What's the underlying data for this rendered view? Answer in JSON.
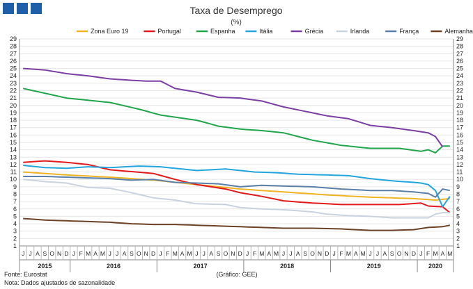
{
  "header": {
    "logo_icon": "eurostat-style-blocks-icon",
    "accent_color": "#1f5fa8"
  },
  "footer": {
    "source": "Fonte: Eurostat",
    "note": "Nota: Dados ajustados de sazonalidade",
    "credit": "(Gráfico: GEE)"
  },
  "chart_data": {
    "type": "line",
    "title": "Taxa de Desemprego",
    "subtitle": "(%)",
    "xlabel": "",
    "ylabel": "",
    "ylim": [
      1,
      29
    ],
    "yticks": [
      1,
      2,
      3,
      4,
      5,
      6,
      7,
      8,
      9,
      10,
      11,
      12,
      13,
      14,
      15,
      16,
      17,
      18,
      19,
      20,
      21,
      22,
      23,
      24,
      25,
      26,
      27,
      28,
      29
    ],
    "grid": true,
    "legend_position": "top",
    "month_labels": [
      "J",
      "J",
      "A",
      "S",
      "O",
      "N",
      "D",
      "J",
      "F",
      "M",
      "A",
      "M",
      "J",
      "J",
      "A",
      "S",
      "O",
      "N",
      "D",
      "J",
      "F",
      "M",
      "A",
      "M",
      "J",
      "J",
      "A",
      "S",
      "O",
      "N",
      "D",
      "J",
      "F",
      "M",
      "A",
      "M",
      "J",
      "J",
      "A",
      "S",
      "O",
      "N",
      "D",
      "J",
      "F",
      "M",
      "A",
      "M",
      "J",
      "J",
      "A",
      "S",
      "O",
      "N",
      "D",
      "J",
      "F",
      "M",
      "A",
      "M"
    ],
    "year_labels": [
      {
        "label": "2015",
        "start": 0,
        "end": 6
      },
      {
        "label": "2016",
        "start": 7,
        "end": 18
      },
      {
        "label": "2017",
        "start": 19,
        "end": 30
      },
      {
        "label": "2018",
        "start": 31,
        "end": 42
      },
      {
        "label": "2019",
        "start": 43,
        "end": 54
      },
      {
        "label": "2020",
        "start": 55,
        "end": 59
      }
    ],
    "series": [
      {
        "name": "Zona Euro 19",
        "color": "#f0b323",
        "anchors": [
          [
            0,
            11.0
          ],
          [
            6,
            10.6
          ],
          [
            12,
            10.3
          ],
          [
            18,
            9.9
          ],
          [
            24,
            9.3
          ],
          [
            30,
            8.7
          ],
          [
            36,
            8.3
          ],
          [
            42,
            7.9
          ],
          [
            48,
            7.6
          ],
          [
            54,
            7.4
          ],
          [
            57,
            7.2
          ],
          [
            58,
            7.3
          ],
          [
            59,
            7.4
          ]
        ]
      },
      {
        "name": "Portugal",
        "color": "#e31a1c",
        "anchors": [
          [
            0,
            12.3
          ],
          [
            3,
            12.5
          ],
          [
            6,
            12.3
          ],
          [
            9,
            12.0
          ],
          [
            12,
            11.3
          ],
          [
            18,
            10.8
          ],
          [
            21,
            10.0
          ],
          [
            24,
            9.3
          ],
          [
            28,
            8.7
          ],
          [
            30,
            8.2
          ],
          [
            33,
            7.7
          ],
          [
            36,
            7.1
          ],
          [
            40,
            6.8
          ],
          [
            44,
            6.6
          ],
          [
            48,
            6.6
          ],
          [
            52,
            6.6
          ],
          [
            55,
            6.8
          ],
          [
            56,
            6.4
          ],
          [
            58,
            6.3
          ],
          [
            59,
            5.5
          ]
        ]
      },
      {
        "name": "Espanha",
        "color": "#1fa64a",
        "anchors": [
          [
            0,
            22.3
          ],
          [
            6,
            21.0
          ],
          [
            12,
            20.4
          ],
          [
            16,
            19.5
          ],
          [
            19,
            18.7
          ],
          [
            24,
            18.0
          ],
          [
            27,
            17.2
          ],
          [
            30,
            16.8
          ],
          [
            33,
            16.6
          ],
          [
            36,
            16.3
          ],
          [
            40,
            15.3
          ],
          [
            44,
            14.6
          ],
          [
            48,
            14.2
          ],
          [
            52,
            14.2
          ],
          [
            55,
            13.8
          ],
          [
            56,
            14.0
          ],
          [
            57,
            13.6
          ],
          [
            58,
            14.5
          ],
          [
            59,
            14.5
          ]
        ]
      },
      {
        "name": "Itália",
        "color": "#22a6dd",
        "anchors": [
          [
            0,
            11.9
          ],
          [
            3,
            11.6
          ],
          [
            6,
            11.5
          ],
          [
            9,
            11.7
          ],
          [
            12,
            11.6
          ],
          [
            16,
            11.8
          ],
          [
            19,
            11.7
          ],
          [
            24,
            11.2
          ],
          [
            28,
            11.4
          ],
          [
            32,
            11.0
          ],
          [
            35,
            10.9
          ],
          [
            38,
            10.7
          ],
          [
            42,
            10.6
          ],
          [
            45,
            10.5
          ],
          [
            48,
            10.1
          ],
          [
            51,
            9.8
          ],
          [
            54,
            9.6
          ],
          [
            55,
            9.5
          ],
          [
            56,
            9.3
          ],
          [
            57,
            8.5
          ],
          [
            58,
            6.3
          ],
          [
            59,
            7.7
          ]
        ]
      },
      {
        "name": "Grécia",
        "color": "#7b3fa4",
        "anchors": [
          [
            0,
            25.0
          ],
          [
            3,
            24.8
          ],
          [
            6,
            24.3
          ],
          [
            9,
            24.0
          ],
          [
            12,
            23.6
          ],
          [
            15,
            23.4
          ],
          [
            17,
            23.3
          ],
          [
            19,
            23.3
          ],
          [
            21,
            22.3
          ],
          [
            24,
            21.8
          ],
          [
            27,
            21.1
          ],
          [
            30,
            21.0
          ],
          [
            33,
            20.6
          ],
          [
            36,
            19.8
          ],
          [
            39,
            19.2
          ],
          [
            42,
            18.6
          ],
          [
            45,
            18.2
          ],
          [
            48,
            17.3
          ],
          [
            51,
            17.0
          ],
          [
            54,
            16.6
          ],
          [
            56,
            16.3
          ],
          [
            57,
            15.8
          ],
          [
            58,
            14.4
          ]
        ]
      },
      {
        "name": "Irlanda",
        "color": "#c9d2df",
        "anchors": [
          [
            0,
            10.0
          ],
          [
            3,
            9.7
          ],
          [
            6,
            9.5
          ],
          [
            9,
            8.9
          ],
          [
            12,
            8.8
          ],
          [
            15,
            8.2
          ],
          [
            18,
            7.5
          ],
          [
            21,
            7.2
          ],
          [
            24,
            6.7
          ],
          [
            28,
            6.6
          ],
          [
            30,
            6.2
          ],
          [
            33,
            6.0
          ],
          [
            36,
            5.9
          ],
          [
            40,
            5.6
          ],
          [
            42,
            5.3
          ],
          [
            45,
            5.1
          ],
          [
            48,
            5.0
          ],
          [
            51,
            4.8
          ],
          [
            54,
            4.8
          ],
          [
            56,
            4.8
          ],
          [
            57,
            5.3
          ],
          [
            58,
            5.5
          ],
          [
            59,
            5.5
          ]
        ]
      },
      {
        "name": "França",
        "color": "#5a7fa8",
        "anchors": [
          [
            0,
            10.4
          ],
          [
            3,
            10.4
          ],
          [
            6,
            10.3
          ],
          [
            9,
            10.2
          ],
          [
            12,
            10.1
          ],
          [
            15,
            9.9
          ],
          [
            18,
            10.0
          ],
          [
            21,
            9.6
          ],
          [
            24,
            9.5
          ],
          [
            27,
            9.4
          ],
          [
            30,
            9.0
          ],
          [
            33,
            9.2
          ],
          [
            36,
            9.1
          ],
          [
            40,
            9.0
          ],
          [
            44,
            8.7
          ],
          [
            48,
            8.5
          ],
          [
            51,
            8.5
          ],
          [
            54,
            8.3
          ],
          [
            56,
            8.1
          ],
          [
            57,
            7.6
          ],
          [
            58,
            8.7
          ],
          [
            59,
            8.5
          ]
        ]
      },
      {
        "name": "Alemanha",
        "color": "#6b4226",
        "anchors": [
          [
            0,
            4.7
          ],
          [
            3,
            4.5
          ],
          [
            6,
            4.4
          ],
          [
            9,
            4.3
          ],
          [
            12,
            4.2
          ],
          [
            15,
            4.0
          ],
          [
            18,
            3.9
          ],
          [
            21,
            3.9
          ],
          [
            24,
            3.8
          ],
          [
            27,
            3.7
          ],
          [
            30,
            3.6
          ],
          [
            33,
            3.5
          ],
          [
            36,
            3.4
          ],
          [
            40,
            3.4
          ],
          [
            44,
            3.3
          ],
          [
            48,
            3.1
          ],
          [
            51,
            3.1
          ],
          [
            54,
            3.2
          ],
          [
            56,
            3.5
          ],
          [
            58,
            3.6
          ],
          [
            59,
            3.8
          ]
        ]
      }
    ]
  }
}
